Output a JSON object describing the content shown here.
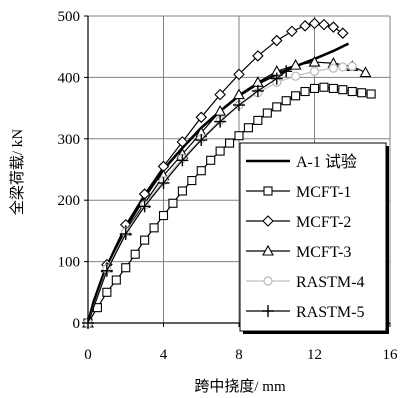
{
  "chart_data": {
    "type": "line",
    "xlabel": "跨中挠度/ mm",
    "ylabel": "全梁荷载/ kN",
    "xlim": [
      0,
      16
    ],
    "ylim": [
      0,
      500
    ],
    "xticks": [
      0,
      4,
      8,
      12,
      16
    ],
    "yticks": [
      0,
      100,
      200,
      300,
      400,
      500
    ],
    "grid": true,
    "legend_position": "bottom-right",
    "series": [
      {
        "name": "A-1 试验",
        "marker": "none",
        "color": "#000000",
        "x": [
          0,
          0.3,
          0.8,
          1.5,
          2.2,
          3.0,
          4.0,
          5.0,
          6.0,
          7.0,
          8.0,
          9.0,
          10.0,
          11.0,
          12.0,
          13.0,
          13.8
        ],
        "y": [
          0,
          35,
          78,
          125,
          165,
          205,
          250,
          285,
          318,
          345,
          370,
          390,
          405,
          418,
          430,
          443,
          455
        ]
      },
      {
        "name": "MCFT-1",
        "marker": "square",
        "color": "#000000",
        "x": [
          0,
          0.5,
          1.0,
          1.5,
          2.0,
          2.5,
          3.0,
          3.5,
          4.0,
          4.5,
          5.0,
          5.5,
          6.0,
          6.5,
          7.0,
          7.5,
          8.0,
          8.5,
          9.0,
          9.5,
          10.0,
          10.5,
          11.0,
          11.5,
          12.0,
          12.5,
          13.0,
          13.5,
          14.0,
          14.5,
          15.0
        ],
        "y": [
          0,
          25,
          50,
          70,
          90,
          112,
          135,
          155,
          175,
          195,
          215,
          232,
          248,
          265,
          280,
          293,
          305,
          318,
          330,
          342,
          352,
          362,
          370,
          377,
          382,
          384,
          382,
          380,
          377,
          375,
          373
        ]
      },
      {
        "name": "MCFT-2",
        "marker": "diamond",
        "color": "#000000",
        "x": [
          0,
          1.0,
          2.0,
          3.0,
          4.0,
          5.0,
          6.0,
          7.0,
          8.0,
          9.0,
          10.0,
          10.8,
          11.5,
          12.0,
          12.5,
          13.0,
          13.5
        ],
        "y": [
          0,
          95,
          160,
          210,
          255,
          295,
          335,
          372,
          405,
          435,
          460,
          475,
          484,
          488,
          486,
          482,
          472
        ]
      },
      {
        "name": "MCFT-3",
        "marker": "triangle",
        "color": "#000000",
        "x": [
          0,
          1.0,
          2.0,
          3.0,
          4.0,
          5.0,
          6.0,
          7.0,
          8.0,
          9.0,
          10.0,
          11.0,
          12.0,
          13.0,
          14.0,
          14.7
        ],
        "y": [
          0,
          90,
          150,
          195,
          240,
          275,
          310,
          345,
          372,
          392,
          410,
          420,
          425,
          423,
          418,
          408
        ]
      },
      {
        "name": "RASTM-4",
        "marker": "circle",
        "color": "#c0c0c0",
        "x": [
          0,
          1.0,
          2.0,
          3.0,
          4.0,
          5.0,
          6.0,
          7.0,
          8.0,
          9.0,
          10.0,
          11.0,
          12.0,
          13.0,
          13.5,
          14.0
        ],
        "y": [
          0,
          88,
          148,
          192,
          232,
          268,
          300,
          330,
          355,
          375,
          392,
          402,
          410,
          415,
          417,
          418
        ]
      },
      {
        "name": "RASTM-5",
        "marker": "plus",
        "color": "#000000",
        "x": [
          0,
          1.0,
          2.0,
          3.0,
          4.0,
          5.0,
          6.0,
          7.0,
          8.0,
          9.0,
          10.0,
          10.5
        ],
        "y": [
          0,
          85,
          145,
          190,
          228,
          265,
          298,
          328,
          355,
          378,
          398,
          410
        ]
      }
    ]
  }
}
